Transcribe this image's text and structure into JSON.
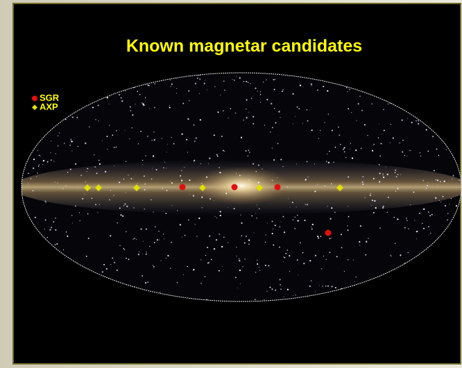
{
  "title": "Known magnetar candidates",
  "legend": [
    "SGR",
    "AXP"
  ]
}
